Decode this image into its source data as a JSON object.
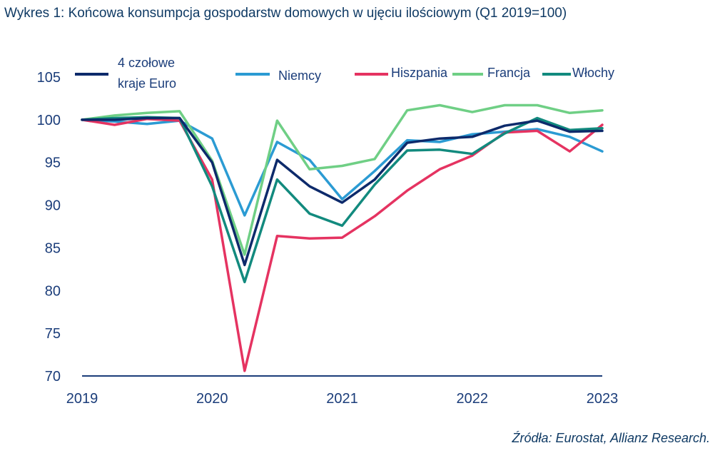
{
  "title": "Wykres 1: Końcowa konsumpcja gospodarstw domowych w ujęciu ilościowym (Q1 2019=100)",
  "source": "Źródła: Eurostat, Allianz Research.",
  "chart_data": {
    "type": "line",
    "title": "Wykres 1: Końcowa konsumpcja gospodarstw domowych w ujęciu ilościowym (Q1 2019=100)",
    "x": [
      "2019-Q1",
      "2019-Q2",
      "2019-Q3",
      "2019-Q4",
      "2020-Q1",
      "2020-Q2",
      "2020-Q3",
      "2020-Q4",
      "2021-Q1",
      "2021-Q2",
      "2021-Q3",
      "2021-Q4",
      "2022-Q1",
      "2022-Q2",
      "2022-Q3",
      "2022-Q4",
      "2023-Q1"
    ],
    "x_tick_labels": [
      "2019",
      "2020",
      "2021",
      "2022",
      "2023"
    ],
    "y_tick_labels": [
      "70",
      "75",
      "80",
      "85",
      "90",
      "95",
      "100",
      "105"
    ],
    "ylim": [
      70,
      105
    ],
    "grid": false,
    "legend_position": "top",
    "series": [
      {
        "name": "4 czołowe kraje Euro",
        "color": "#0d2a6b",
        "values": [
          100.0,
          100.0,
          100.2,
          100.2,
          95.0,
          83.0,
          95.3,
          92.2,
          90.3,
          93.0,
          97.3,
          97.8,
          98.0,
          99.3,
          99.9,
          98.6,
          98.7
        ]
      },
      {
        "name": "Niemcy",
        "color": "#2b9bd3",
        "values": [
          100.0,
          99.8,
          99.5,
          99.9,
          97.8,
          88.8,
          97.4,
          95.3,
          90.7,
          94.0,
          97.6,
          97.4,
          98.3,
          98.6,
          98.9,
          98.0,
          96.3
        ]
      },
      {
        "name": "Hiszpania",
        "color": "#e53361",
        "values": [
          100.0,
          99.4,
          100.1,
          99.9,
          93.0,
          70.6,
          86.4,
          86.1,
          86.2,
          88.7,
          91.7,
          94.2,
          95.8,
          98.5,
          98.7,
          96.3,
          99.4
        ]
      },
      {
        "name": "Francja",
        "color": "#6fcf85",
        "values": [
          100.0,
          100.5,
          100.8,
          101.0,
          95.2,
          84.2,
          99.9,
          94.2,
          94.6,
          95.4,
          101.1,
          101.7,
          100.9,
          101.7,
          101.7,
          100.8,
          101.1
        ]
      },
      {
        "name": "Włochy",
        "color": "#128a7e",
        "values": [
          100.0,
          100.2,
          100.3,
          100.2,
          92.2,
          81.0,
          93.0,
          89.0,
          87.6,
          92.4,
          96.4,
          96.5,
          96.0,
          98.4,
          100.2,
          98.8,
          99.0
        ]
      }
    ]
  },
  "legend": [
    {
      "line1": "4 czołowe",
      "line2": "kraje Euro"
    },
    {
      "label": "Niemcy"
    },
    {
      "label": "Hiszpania"
    },
    {
      "label": "Francja"
    },
    {
      "label": "Włochy"
    }
  ]
}
